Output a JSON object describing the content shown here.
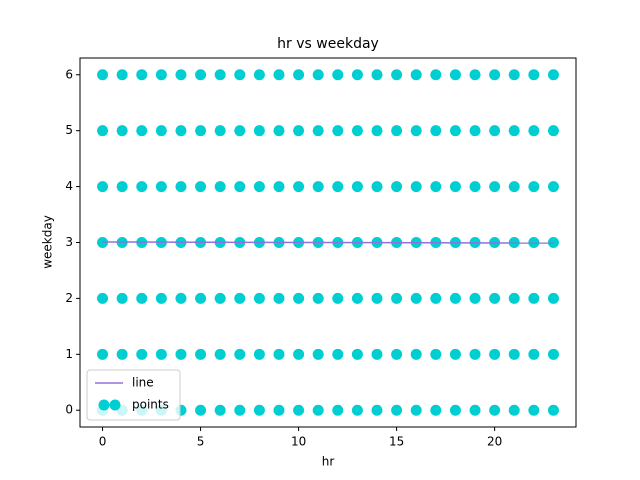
{
  "chart_data": {
    "type": "scatter",
    "title": "hr vs weekday",
    "x_label": "hr",
    "y_label": "weekday",
    "xlim": [
      -1.15,
      24.15
    ],
    "ylim": [
      -0.3,
      6.3
    ],
    "xticks": [
      0,
      5,
      10,
      15,
      20
    ],
    "yticks": [
      0,
      1,
      2,
      3,
      4,
      5,
      6
    ],
    "legend": "lower left",
    "series": [
      {
        "name": "line",
        "type": "line",
        "color": "#9370db",
        "x": [
          0,
          23
        ],
        "y": [
          3.01,
          2.99
        ]
      },
      {
        "name": "points",
        "type": "scatter",
        "color": "#00ced1",
        "x": [
          0,
          1,
          2,
          3,
          4,
          5,
          6,
          7,
          8,
          9,
          10,
          11,
          12,
          13,
          14,
          15,
          16,
          17,
          18,
          19,
          20,
          21,
          22,
          23,
          0,
          1,
          2,
          3,
          4,
          5,
          6,
          7,
          8,
          9,
          10,
          11,
          12,
          13,
          14,
          15,
          16,
          17,
          18,
          19,
          20,
          21,
          22,
          23,
          0,
          1,
          2,
          3,
          4,
          5,
          6,
          7,
          8,
          9,
          10,
          11,
          12,
          13,
          14,
          15,
          16,
          17,
          18,
          19,
          20,
          21,
          22,
          23,
          0,
          1,
          2,
          3,
          4,
          5,
          6,
          7,
          8,
          9,
          10,
          11,
          12,
          13,
          14,
          15,
          16,
          17,
          18,
          19,
          20,
          21,
          22,
          23,
          0,
          1,
          2,
          3,
          4,
          5,
          6,
          7,
          8,
          9,
          10,
          11,
          12,
          13,
          14,
          15,
          16,
          17,
          18,
          19,
          20,
          21,
          22,
          23,
          0,
          1,
          2,
          3,
          4,
          5,
          6,
          7,
          8,
          9,
          10,
          11,
          12,
          13,
          14,
          15,
          16,
          17,
          18,
          19,
          20,
          21,
          22,
          23,
          0,
          1,
          2,
          3,
          4,
          5,
          6,
          7,
          8,
          9,
          10,
          11,
          12,
          13,
          14,
          15,
          16,
          17,
          18,
          19,
          20,
          21,
          22,
          23
        ],
        "y": [
          0,
          0,
          0,
          0,
          0,
          0,
          0,
          0,
          0,
          0,
          0,
          0,
          0,
          0,
          0,
          0,
          0,
          0,
          0,
          0,
          0,
          0,
          0,
          0,
          1,
          1,
          1,
          1,
          1,
          1,
          1,
          1,
          1,
          1,
          1,
          1,
          1,
          1,
          1,
          1,
          1,
          1,
          1,
          1,
          1,
          1,
          1,
          1,
          2,
          2,
          2,
          2,
          2,
          2,
          2,
          2,
          2,
          2,
          2,
          2,
          2,
          2,
          2,
          2,
          2,
          2,
          2,
          2,
          2,
          2,
          2,
          2,
          3,
          3,
          3,
          3,
          3,
          3,
          3,
          3,
          3,
          3,
          3,
          3,
          3,
          3,
          3,
          3,
          3,
          3,
          3,
          3,
          3,
          3,
          3,
          3,
          4,
          4,
          4,
          4,
          4,
          4,
          4,
          4,
          4,
          4,
          4,
          4,
          4,
          4,
          4,
          4,
          4,
          4,
          4,
          4,
          4,
          4,
          4,
          4,
          5,
          5,
          5,
          5,
          5,
          5,
          5,
          5,
          5,
          5,
          5,
          5,
          5,
          5,
          5,
          5,
          5,
          5,
          5,
          5,
          5,
          5,
          5,
          5,
          6,
          6,
          6,
          6,
          6,
          6,
          6,
          6,
          6,
          6,
          6,
          6,
          6,
          6,
          6,
          6,
          6,
          6,
          6,
          6,
          6,
          6,
          6,
          6
        ]
      }
    ]
  }
}
